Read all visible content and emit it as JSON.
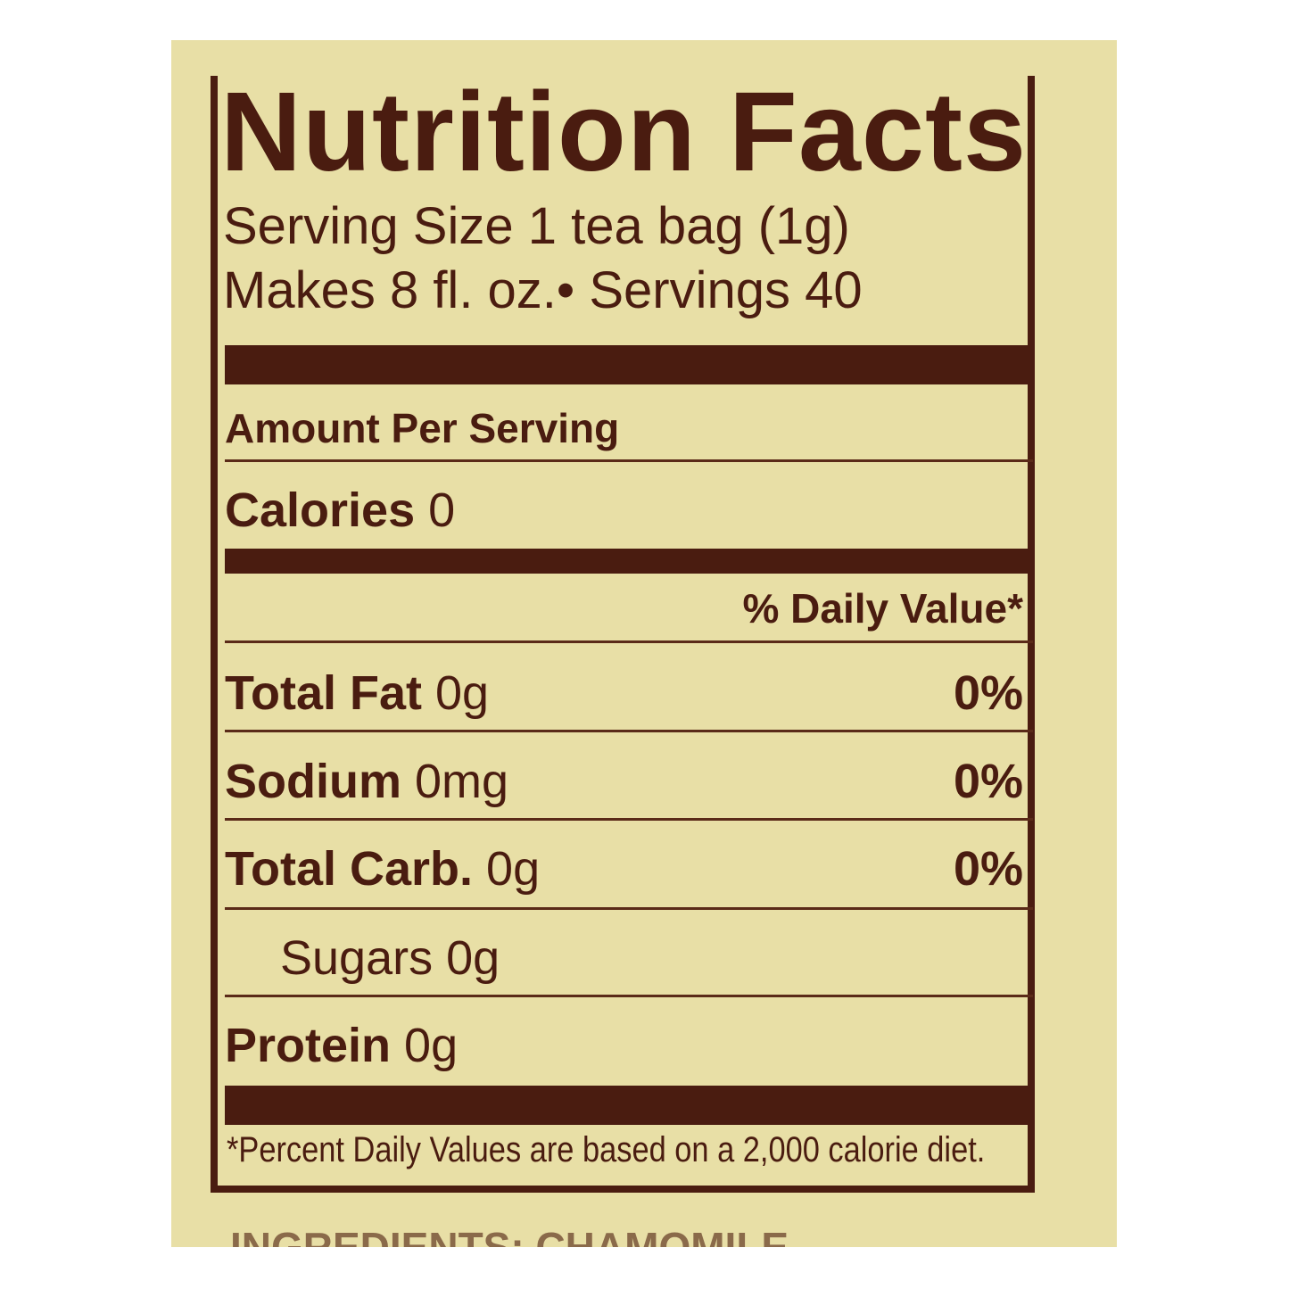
{
  "label": {
    "title": "Nutrition Facts",
    "serving_size": "Serving Size 1 tea bag (1g)",
    "servings": "Makes 8 fl. oz.• Servings 40",
    "amount_per_serving": "Amount Per Serving",
    "calories_label": "Calories",
    "calories_value": "0",
    "daily_value_header": "% Daily Value*",
    "nutrients": [
      {
        "name": "Total Fat",
        "amount": "0g",
        "dv": "0%"
      },
      {
        "name": "Sodium",
        "amount": "0mg",
        "dv": "0%"
      },
      {
        "name": "Total Carb.",
        "amount": "0g",
        "dv": "0%"
      },
      {
        "name": "Sugars",
        "amount": "0g",
        "dv": ""
      },
      {
        "name": "Protein",
        "amount": "0g",
        "dv": ""
      }
    ],
    "footnote": "*Percent Daily Values are based on a 2,000 calorie diet.",
    "ingredients_partial": "INGREDIENTS: CHAMOMILE"
  },
  "colors": {
    "ink": "#4a1c10",
    "background": "#e8dfa6"
  }
}
